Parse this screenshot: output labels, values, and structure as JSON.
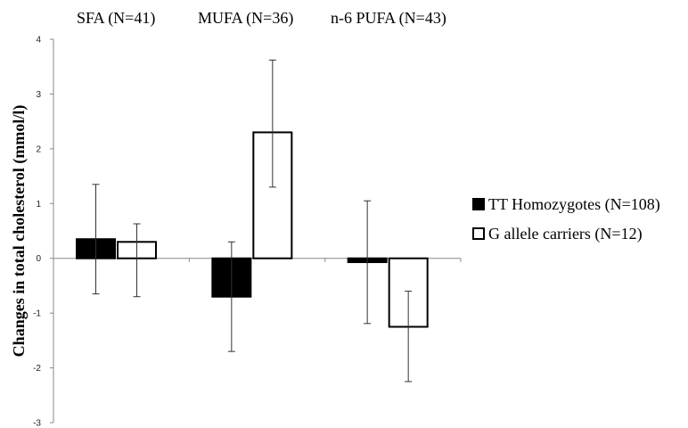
{
  "chart_data": {
    "type": "bar",
    "categories": [
      "SFA  (N=41)",
      "MUFA (N=36)",
      "n-6 PUFA (N=43)"
    ],
    "series": [
      {
        "name": "TT Homozygotes (N=108)",
        "values": [
          0.35,
          -0.7,
          -0.07
        ],
        "error": [
          1.0,
          1.0,
          1.12
        ],
        "color": "#000000"
      },
      {
        "name": "G allele carriers (N=12)",
        "values": [
          0.3,
          2.3,
          -1.25
        ],
        "error": [
          0.33,
          1.32,
          0.65
        ],
        "error_low": [
          1.0,
          1.0,
          1.0
        ],
        "color": "#ffffff"
      }
    ],
    "ylabel": "Changes in total cholesterol (mmol/l)",
    "ylim": [
      -3,
      4
    ],
    "yticks": [
      "-3",
      "-2",
      "-1",
      "0",
      "1",
      "2",
      "3",
      "4"
    ],
    "grid": false,
    "legend_position": "right"
  }
}
